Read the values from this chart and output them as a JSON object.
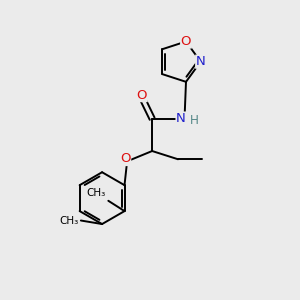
{
  "background_color": "#ebebeb",
  "atom_colors": {
    "C": "#000000",
    "N": "#2020cc",
    "O": "#dd1111",
    "H": "#888888"
  },
  "figsize": [
    3.0,
    3.0
  ],
  "dpi": 100,
  "bond_lw": 1.4,
  "font_size": 9.5
}
